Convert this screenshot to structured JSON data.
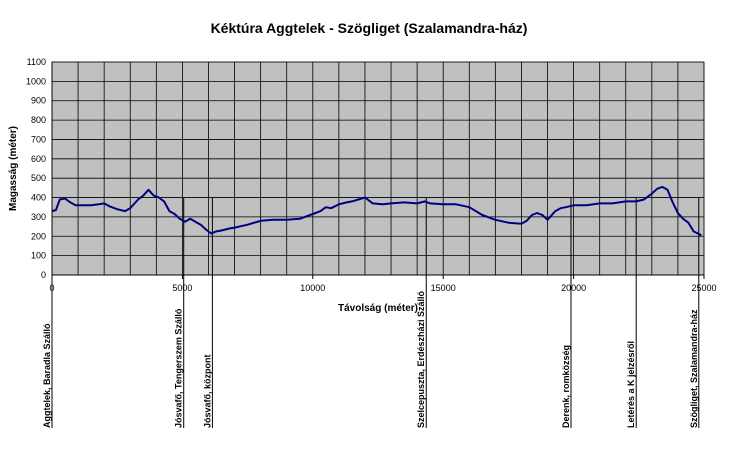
{
  "chart_data": {
    "type": "line",
    "title": "Kéktúra Aggtelek - Szögliget (Szalamandra-ház)",
    "xlabel": "Távolság (méter)",
    "ylabel": "Magasság (méter)",
    "xlim": [
      0,
      25000
    ],
    "ylim": [
      0,
      1100
    ],
    "xticks": [
      0,
      5000,
      10000,
      15000,
      20000,
      25000
    ],
    "yticks": [
      0,
      100,
      200,
      300,
      400,
      500,
      600,
      700,
      800,
      900,
      1000,
      1100
    ],
    "grid": true,
    "plot_background": "#c0c0c0",
    "series": [
      {
        "color": "#000080",
        "x": [
          0,
          150,
          300,
          500,
          700,
          900,
          1200,
          1500,
          1800,
          2000,
          2200,
          2500,
          2800,
          3000,
          3300,
          3500,
          3700,
          3900,
          4100,
          4300,
          4500,
          4700,
          4900,
          5100,
          5300,
          5500,
          5700,
          5900,
          6100,
          6300,
          6500,
          6800,
          7000,
          7500,
          8000,
          8500,
          9000,
          9500,
          10000,
          10300,
          10500,
          10700,
          11000,
          11300,
          11500,
          12000,
          12300,
          12700,
          13000,
          13500,
          14000,
          14300,
          14500,
          15000,
          15500,
          16000,
          16500,
          17000,
          17500,
          18000,
          18200,
          18400,
          18600,
          18800,
          19000,
          19300,
          19500,
          19700,
          20000,
          20500,
          21000,
          21500,
          22000,
          22400,
          22700,
          23000,
          23200,
          23400,
          23600,
          23800,
          24000,
          24200,
          24400,
          24600,
          24900
        ],
        "y": [
          330,
          335,
          390,
          395,
          375,
          360,
          360,
          360,
          365,
          370,
          355,
          340,
          330,
          345,
          390,
          410,
          440,
          410,
          400,
          380,
          330,
          315,
          290,
          275,
          290,
          275,
          260,
          235,
          215,
          225,
          230,
          240,
          245,
          260,
          280,
          285,
          285,
          290,
          315,
          330,
          350,
          345,
          365,
          375,
          380,
          400,
          370,
          365,
          370,
          375,
          370,
          380,
          370,
          365,
          365,
          350,
          310,
          285,
          270,
          265,
          280,
          310,
          320,
          310,
          285,
          330,
          345,
          350,
          360,
          360,
          370,
          370,
          380,
          380,
          390,
          420,
          445,
          455,
          440,
          375,
          320,
          290,
          270,
          225,
          205
        ]
      }
    ],
    "waypoints": [
      {
        "x": 0,
        "label": "Aggtelek, Baradla Szálló"
      },
      {
        "x": 5050,
        "label": "Jósvafő, Tengerszem Szálló"
      },
      {
        "x": 6150,
        "label": "Jósvafő, központ"
      },
      {
        "x": 14350,
        "label": "Szelcepuszta, Erdészházi Szálló"
      },
      {
        "x": 19900,
        "label": "Derenk, romközség"
      },
      {
        "x": 22400,
        "label": "Letérés a K jelzésről"
      },
      {
        "x": 24800,
        "label": "Szögliget, Szalamandra-ház"
      }
    ]
  }
}
